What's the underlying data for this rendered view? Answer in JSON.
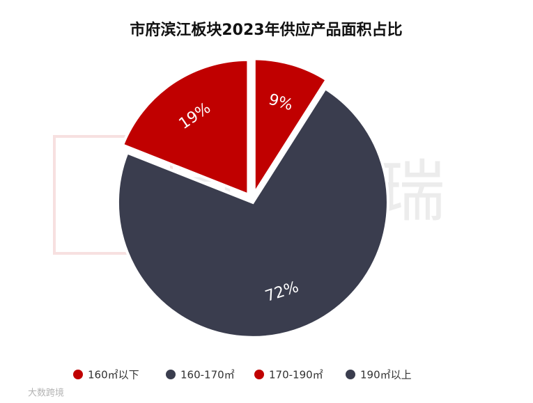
{
  "chart_data": {
    "type": "pie",
    "title": "市府滨江板块2023年供应产品面积占比",
    "categories": [
      "160㎡以下",
      "160-170㎡",
      "170-190㎡",
      "190㎡以上"
    ],
    "values": [
      9,
      72,
      19,
      0
    ],
    "value_labels": [
      "9%",
      "72%",
      "19%",
      null
    ],
    "colors": [
      "#c00000",
      "#3a3d4e",
      "#c00000",
      "#3a3d4e"
    ],
    "legend": "bottom",
    "watermark": "克而瑞",
    "source_mark": "大数跨境"
  }
}
